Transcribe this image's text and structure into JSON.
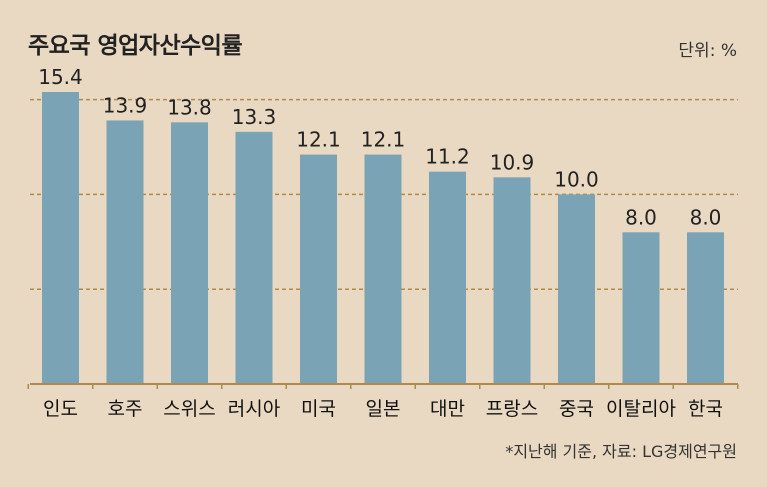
{
  "title": "주요국 영업자산수익률",
  "unit": "단위: %",
  "source": "*지난해 기준, 자료: LG경제연구원",
  "colors": {
    "bar": "#7aa3b6",
    "background": "#ead9c2",
    "gridline": "#b08a4c",
    "axis": "#b08a4c"
  },
  "chart_data": {
    "type": "bar",
    "title": "주요국 영업자산수익률",
    "ylabel": "단위: %",
    "categories": [
      "인도",
      "호주",
      "스위스",
      "러시아",
      "미국",
      "일본",
      "대만",
      "프랑스",
      "중국",
      "이탈리아",
      "한국"
    ],
    "values": [
      15.4,
      13.9,
      13.8,
      13.3,
      12.1,
      12.1,
      11.2,
      10.9,
      10.0,
      8.0,
      8.0
    ],
    "value_labels": [
      "15.4",
      "13.9",
      "13.8",
      "13.3",
      "12.1",
      "12.1",
      "11.2",
      "10.9",
      "10.0",
      "8.0",
      "8.0"
    ],
    "ylim": [
      0,
      15.4
    ],
    "gridlines": [
      5,
      10,
      15
    ],
    "grid": true,
    "legend": "none"
  }
}
